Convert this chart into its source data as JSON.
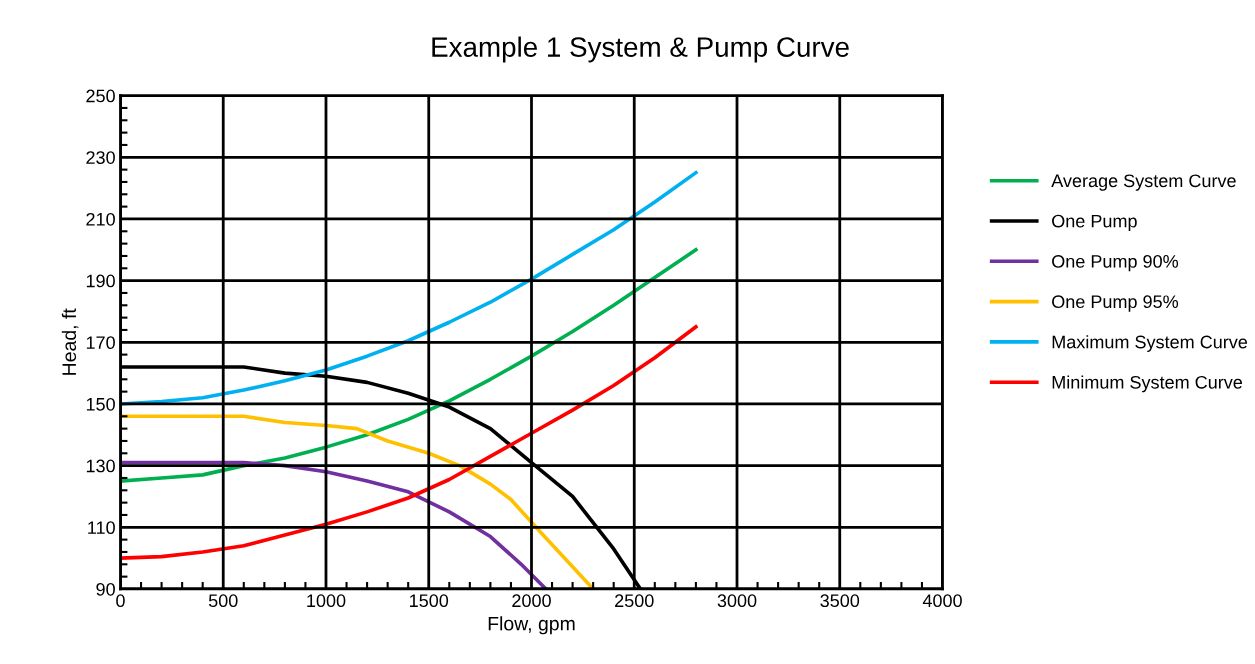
{
  "chart_data": {
    "type": "line",
    "title": "Example 1 System & Pump Curve",
    "xlabel": "Flow, gpm",
    "ylabel": "Head, ft",
    "xlim": [
      0,
      4000
    ],
    "xticks": [
      0,
      500,
      1000,
      1500,
      2000,
      2500,
      3000,
      3500,
      4000
    ],
    "ylim": [
      90,
      250
    ],
    "yticks": [
      90,
      110,
      130,
      150,
      170,
      190,
      210,
      230,
      250
    ],
    "grid": true,
    "legend": "right",
    "marker": "none",
    "line_style": "solid",
    "series": [
      {
        "name": "Average System Curve",
        "color": "#00b050",
        "x": [
          0,
          200,
          400,
          600,
          800,
          1000,
          1200,
          1400,
          1600,
          1800,
          2000,
          2200,
          2400,
          2600,
          2800
        ],
        "values": [
          125,
          126,
          127,
          130,
          132.5,
          136,
          140,
          145,
          151,
          158,
          165.5,
          173.5,
          182,
          191,
          200
        ]
      },
      {
        "name": "One Pump",
        "color": "#000000",
        "x": [
          0,
          600,
          800,
          1000,
          1200,
          1400,
          1600,
          1800,
          2000,
          2200,
          2400,
          2530
        ],
        "values": [
          162,
          162,
          160,
          159,
          157,
          153.5,
          149,
          142,
          131,
          120,
          103,
          90
        ]
      },
      {
        "name": "One Pump 90%",
        "color": "#7030a0",
        "x": [
          0,
          600,
          800,
          1000,
          1200,
          1400,
          1600,
          1800,
          1950,
          2070
        ],
        "values": [
          131,
          131,
          130,
          128,
          125,
          121.5,
          115,
          107,
          98,
          90
        ]
      },
      {
        "name": "One Pump 95%",
        "color": "#ffc000",
        "x": [
          0,
          600,
          800,
          1000,
          1150,
          1300,
          1500,
          1650,
          1800,
          1900,
          2050,
          2300
        ],
        "values": [
          146,
          146,
          144,
          143,
          142,
          138,
          134,
          130,
          124,
          119,
          108,
          90
        ]
      },
      {
        "name": "Maximum System Curve",
        "color": "#00b0f0",
        "x": [
          0,
          200,
          400,
          600,
          800,
          1000,
          1200,
          1400,
          1600,
          1800,
          2000,
          2200,
          2400,
          2600,
          2800
        ],
        "values": [
          150,
          150.8,
          152,
          154.5,
          157.5,
          161,
          165.5,
          170.5,
          176.5,
          183,
          190.5,
          198.5,
          206.5,
          215.5,
          225
        ]
      },
      {
        "name": "Minimum System Curve",
        "color": "#ff0000",
        "x": [
          0,
          200,
          400,
          600,
          800,
          1000,
          1200,
          1400,
          1600,
          1800,
          2000,
          2200,
          2400,
          2600,
          2800
        ],
        "values": [
          100,
          100.5,
          102,
          104,
          107.5,
          111,
          115,
          119.5,
          125.5,
          133,
          140.5,
          148,
          156,
          165,
          175
        ]
      }
    ]
  }
}
